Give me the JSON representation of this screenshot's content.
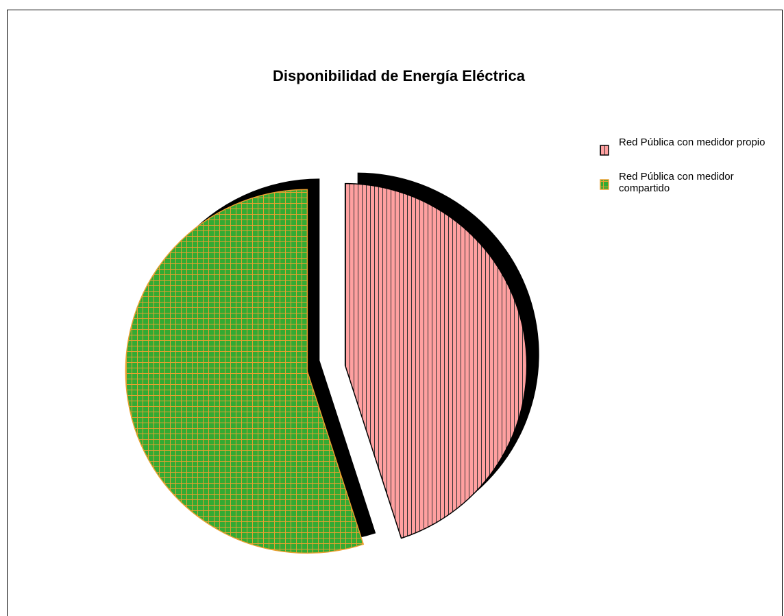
{
  "chart_data": {
    "type": "pie",
    "title": "Disponibilidad de Energía Eléctrica",
    "categories": [
      "Red Pública con medidor propio",
      "Red Pública con medidor compartido"
    ],
    "values": [
      45,
      55
    ],
    "colors": [
      "#ffa0a0",
      "#33aa33"
    ]
  }
}
